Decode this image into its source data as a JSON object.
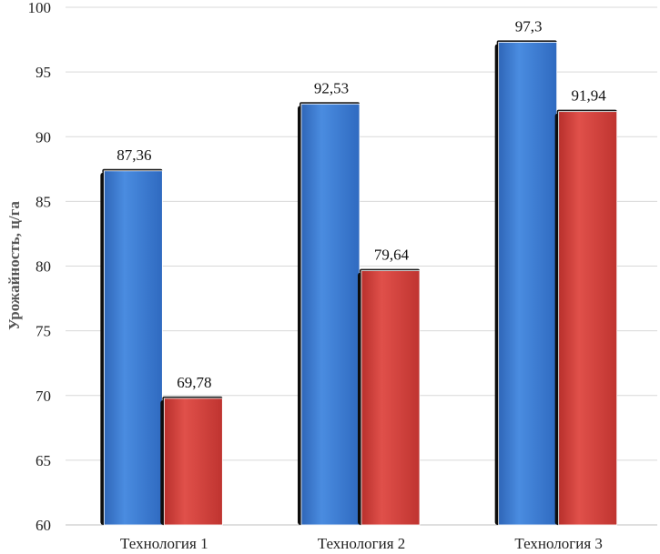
{
  "chart_data": {
    "type": "bar",
    "title": "",
    "xlabel": "",
    "ylabel": "Урожайность, ц/га",
    "categories": [
      "Технология 1",
      "Технология 2",
      "Технология 3"
    ],
    "series": [
      {
        "values": [
          87.36,
          92.53,
          97.3
        ],
        "labels": [
          "87,36",
          "92,53",
          "97,3"
        ],
        "color": "#3F7FD6"
      },
      {
        "values": [
          69.78,
          79.64,
          91.94
        ],
        "labels": [
          "69,78",
          "79,64",
          "91,94"
        ],
        "color": "#D9403C"
      }
    ],
    "ylim": [
      60,
      100
    ],
    "yticks": [
      "60",
      "65",
      "70",
      "75",
      "80",
      "85",
      "90",
      "95",
      "100"
    ],
    "grid": true,
    "legend": "none"
  }
}
